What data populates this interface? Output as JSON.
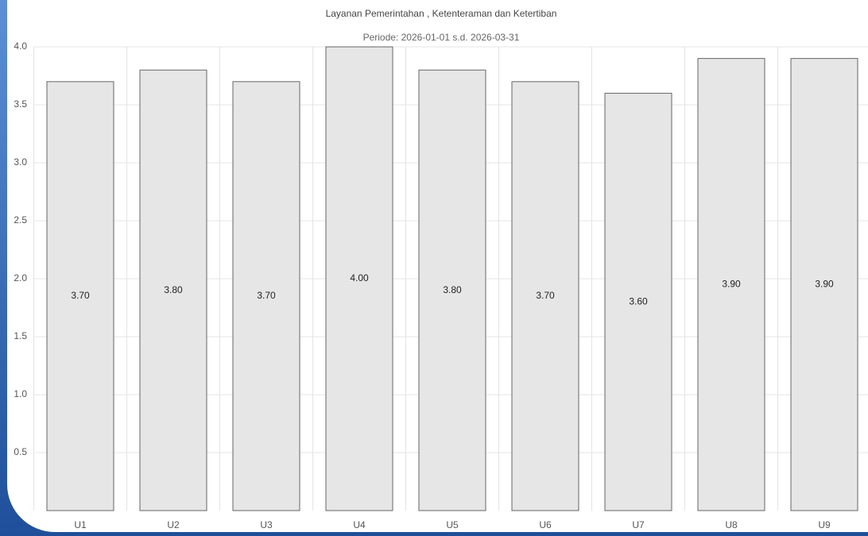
{
  "chart_data": {
    "type": "bar",
    "title": "Layanan Pemerintahan , Ketenteraman dan Ketertiban",
    "subtitle": "Periode: 2026-01-01 s.d. 2026-03-31",
    "categories": [
      "U1",
      "U2",
      "U3",
      "U4",
      "U5",
      "U6",
      "U7",
      "U8",
      "U9"
    ],
    "values": [
      3.7,
      3.8,
      3.7,
      4.0,
      3.8,
      3.7,
      3.6,
      3.9,
      3.9
    ],
    "value_labels": [
      "3.70",
      "3.80",
      "3.70",
      "4.00",
      "3.80",
      "3.70",
      "3.60",
      "3.90",
      "3.90"
    ],
    "color": "#e6e6e6",
    "ylim": [
      0,
      4
    ],
    "yticks": [
      0.5,
      {
        "value": 1,
        "label": "1.0"
      },
      1.5,
      {
        "value": 2,
        "label": "2.0"
      },
      2.5,
      {
        "value": 3,
        "label": "3.0"
      },
      3.5,
      {
        "value": 4,
        "label": "4.0"
      }
    ],
    "grid": true
  }
}
